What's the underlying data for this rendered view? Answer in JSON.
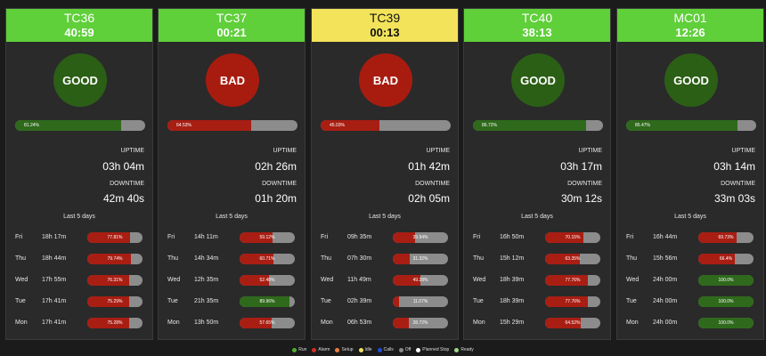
{
  "colors": {
    "header_green": "#5fcf3a",
    "header_yellow": "#f3e35a",
    "good": "#2c5f16",
    "bad": "#a81c10",
    "bar_green": "#2f6a1c",
    "bar_red": "#a91e13",
    "bar_track": "#8c8c8c"
  },
  "machines": [
    {
      "name": "TC36",
      "timer": "40:59",
      "header_color": "green",
      "status": "GOOD",
      "status_type": "good",
      "utilization_label": "81.24%",
      "utilization": 0.8124,
      "uptime_label": "UPTIME",
      "uptime": "03h 04m",
      "downtime_label": "DOWNTIME",
      "downtime": "42m 40s",
      "last_days_label": "Last 5 days",
      "days": [
        {
          "day": "Fri",
          "time": "18h 17m",
          "pct": "77.81%",
          "value": 0.7781,
          "color": "red"
        },
        {
          "day": "Thu",
          "time": "18h 44m",
          "pct": "79.74%",
          "value": 0.7974,
          "color": "red"
        },
        {
          "day": "Wed",
          "time": "17h 55m",
          "pct": "76.31%",
          "value": 0.7631,
          "color": "red"
        },
        {
          "day": "Tue",
          "time": "17h 41m",
          "pct": "75.29%",
          "value": 0.7529,
          "color": "red"
        },
        {
          "day": "Mon",
          "time": "17h 41m",
          "pct": "75.28%",
          "value": 0.7528,
          "color": "red"
        }
      ]
    },
    {
      "name": "TC37",
      "timer": "00:21",
      "header_color": "green",
      "status": "BAD",
      "status_type": "bad",
      "utilization_label": "64.53%",
      "utilization": 0.6453,
      "uptime_label": "UPTIME",
      "uptime": "02h 26m",
      "downtime_label": "DOWNTIME",
      "downtime": "01h 20m",
      "last_days_label": "Last 5 days",
      "days": [
        {
          "day": "Fri",
          "time": "14h 11m",
          "pct": "59.12%",
          "value": 0.5912,
          "color": "red"
        },
        {
          "day": "Thu",
          "time": "14h 34m",
          "pct": "60.71%",
          "value": 0.6071,
          "color": "red"
        },
        {
          "day": "Wed",
          "time": "12h 35m",
          "pct": "52.48%",
          "value": 0.5248,
          "color": "red"
        },
        {
          "day": "Tue",
          "time": "21h 35m",
          "pct": "89.96%",
          "value": 0.8996,
          "color": "green"
        },
        {
          "day": "Mon",
          "time": "13h 50m",
          "pct": "57.65%",
          "value": 0.5765,
          "color": "red"
        }
      ]
    },
    {
      "name": "TC39",
      "timer": "00:13",
      "header_color": "yellow",
      "status": "BAD",
      "status_type": "bad",
      "utilization_label": "45.03%",
      "utilization": 0.4503,
      "uptime_label": "UPTIME",
      "uptime": "01h 42m",
      "downtime_label": "DOWNTIME",
      "downtime": "02h 05m",
      "last_days_label": "Last 5 days",
      "days": [
        {
          "day": "Fri",
          "time": "09h 35m",
          "pct": "39.94%",
          "value": 0.3994,
          "color": "red"
        },
        {
          "day": "Thu",
          "time": "07h 30m",
          "pct": "31.32%",
          "value": 0.3132,
          "color": "red"
        },
        {
          "day": "Wed",
          "time": "11h 49m",
          "pct": "49.28%",
          "value": 0.4928,
          "color": "red"
        },
        {
          "day": "Tue",
          "time": "02h 39m",
          "pct": "11.07%",
          "value": 0.1107,
          "color": "red"
        },
        {
          "day": "Mon",
          "time": "06h 53m",
          "pct": "28.72%",
          "value": 0.2872,
          "color": "red"
        }
      ]
    },
    {
      "name": "TC40",
      "timer": "38:13",
      "header_color": "green",
      "status": "GOOD",
      "status_type": "good",
      "utilization_label": "86.72%",
      "utilization": 0.8672,
      "uptime_label": "UPTIME",
      "uptime": "03h 17m",
      "downtime_label": "DOWNTIME",
      "downtime": "30m 12s",
      "last_days_label": "Last 5 days",
      "days": [
        {
          "day": "Fri",
          "time": "16h 50m",
          "pct": "70.15%",
          "value": 0.7015,
          "color": "red"
        },
        {
          "day": "Thu",
          "time": "15h 12m",
          "pct": "63.35%",
          "value": 0.6335,
          "color": "red"
        },
        {
          "day": "Wed",
          "time": "18h 39m",
          "pct": "77.76%",
          "value": 0.7776,
          "color": "red"
        },
        {
          "day": "Tue",
          "time": "18h 39m",
          "pct": "77.76%",
          "value": 0.7776,
          "color": "red"
        },
        {
          "day": "Mon",
          "time": "15h 29m",
          "pct": "64.52%",
          "value": 0.6452,
          "color": "red"
        }
      ]
    },
    {
      "name": "MC01",
      "timer": "12:26",
      "header_color": "green",
      "status": "GOOD",
      "status_type": "good",
      "utilization_label": "85.47%",
      "utilization": 0.8547,
      "uptime_label": "UPTIME",
      "uptime": "03h 14m",
      "downtime_label": "DOWNTIME",
      "downtime": "33m 03s",
      "last_days_label": "Last 5 days",
      "days": [
        {
          "day": "Fri",
          "time": "16h 44m",
          "pct": "69.73%",
          "value": 0.6973,
          "color": "red"
        },
        {
          "day": "Thu",
          "time": "15h 56m",
          "pct": "66.4%",
          "value": 0.664,
          "color": "red"
        },
        {
          "day": "Wed",
          "time": "24h 00m",
          "pct": "100.0%",
          "value": 1.0,
          "color": "green"
        },
        {
          "day": "Tue",
          "time": "24h 00m",
          "pct": "100.0%",
          "value": 1.0,
          "color": "green"
        },
        {
          "day": "Mon",
          "time": "24h 00m",
          "pct": "100.0%",
          "value": 1.0,
          "color": "green"
        }
      ]
    }
  ],
  "legend": [
    {
      "label": "Run",
      "color": "#4caf2f"
    },
    {
      "label": "Alarm",
      "color": "#d62d20"
    },
    {
      "label": "Setup",
      "color": "#f07c3c"
    },
    {
      "label": "Idle",
      "color": "#f3e35a"
    },
    {
      "label": "Calls",
      "color": "#1f4fd6"
    },
    {
      "label": "Off",
      "color": "#8a8a8a"
    },
    {
      "label": "Planned Stop",
      "color": "#ffffff"
    },
    {
      "label": "Ready",
      "color": "#9ed98a"
    }
  ]
}
